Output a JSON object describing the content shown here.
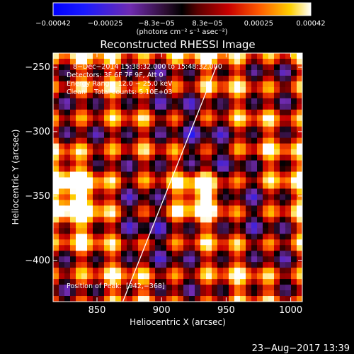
{
  "colorbar": {
    "tick_labels": [
      "−0.00042",
      "−0.00025",
      "−8.3e−05",
      "8.3e−05",
      "0.00025",
      "0.00042"
    ],
    "tick_values": [
      -0.00042,
      -0.00025,
      -8.3e-05,
      8.3e-05,
      0.00025,
      0.00042
    ],
    "range": [
      -0.00042,
      0.00042
    ],
    "units": "(photons cm⁻² s⁻¹ asec⁻²)"
  },
  "chart_data": {
    "type": "heatmap",
    "title": "Reconstructed RHESSI Image",
    "xlabel": "Heliocentric X (arcsec)",
    "ylabel": "Heliocentric Y (arcsec)",
    "xlim": [
      816,
      1009
    ],
    "ylim": [
      -432,
      -239
    ],
    "x_ticks": [
      850,
      900,
      950,
      1000
    ],
    "y_ticks": [
      -250,
      -300,
      -350,
      -400
    ],
    "x_tick_labels": [
      "850",
      "900",
      "950",
      "1000"
    ],
    "y_tick_labels": [
      "−250",
      "−300",
      "−350",
      "−400"
    ],
    "limb_line": [
      [
        870,
        -432
      ],
      [
        943,
        -248
      ]
    ],
    "peak_position": [
      942,
      -368
    ],
    "annotations": [
      "8−Dec−2014 15:38:32.000 to 15:48:32.000",
      "Detectors: 3F 6F 7F 9F, Att 0",
      "Energy Range: 12.0 − 25.0 keV",
      "Clean    Total counts: 5.10E+03",
      "Position of Peak:  [942,−368]"
    ]
  },
  "footer": {
    "timestamp": "23−Aug−2017 13:39"
  }
}
